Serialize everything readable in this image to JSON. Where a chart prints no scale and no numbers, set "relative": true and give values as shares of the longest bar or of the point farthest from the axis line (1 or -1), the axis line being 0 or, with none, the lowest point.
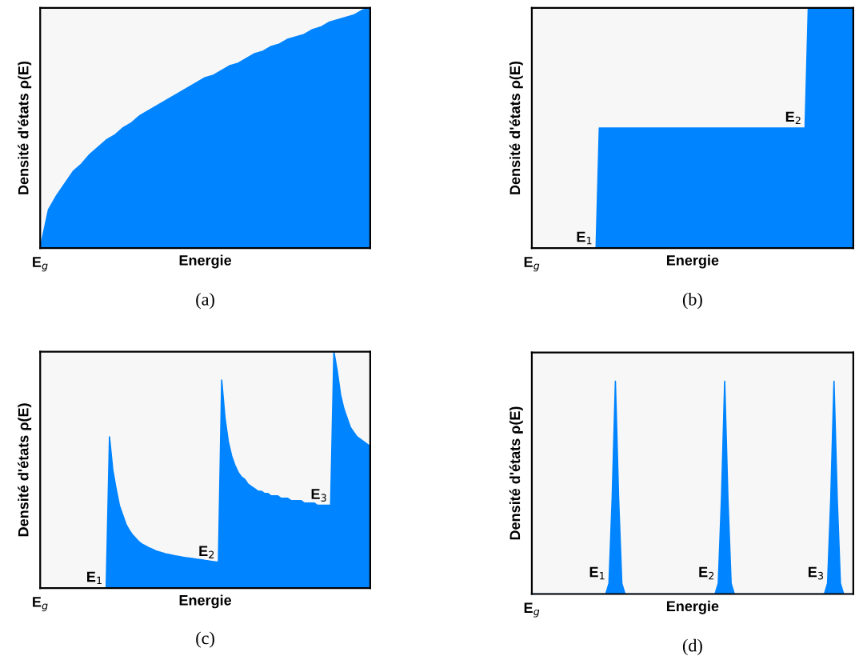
{
  "chart_data": [
    {
      "type": "area",
      "title": "(a)",
      "xlabel": "Energie",
      "ylabel": "Densité d'états ρ(E)",
      "relative": true,
      "tick_labels": false,
      "categories": [
        null,
        null,
        null,
        null,
        null,
        null,
        null,
        null,
        null,
        null,
        null,
        null,
        null,
        null,
        null,
        null,
        null,
        null,
        null,
        null,
        null,
        null,
        null,
        null,
        null,
        null,
        null,
        null,
        null,
        null,
        null,
        null,
        null,
        null,
        null,
        null,
        null,
        null,
        null,
        null,
        null
      ],
      "series": [
        {
          "color": "#0084ff",
          "values": [
            0,
            0.16,
            0.22,
            0.27,
            0.32,
            0.35,
            0.39,
            0.42,
            0.45,
            0.47,
            0.5,
            0.52,
            0.55,
            0.57,
            0.59,
            0.61,
            0.63,
            0.65,
            0.67,
            0.69,
            0.71,
            0.72,
            0.74,
            0.76,
            0.77,
            0.79,
            0.81,
            0.82,
            0.84,
            0.85,
            0.87,
            0.88,
            0.89,
            0.91,
            0.92,
            0.94,
            0.95,
            0.96,
            0.97,
            0.99,
            1
          ]
        }
      ],
      "annotations": [
        "E$_{g}$"
      ]
    },
    {
      "type": "area",
      "title": "(b)",
      "xlabel": "Energie",
      "ylabel": "Densité d'états ρ(E)",
      "relative": true,
      "tick_labels": false,
      "categories": [
        null,
        null,
        null,
        null,
        null,
        null,
        null,
        null,
        null,
        null,
        null,
        null,
        null,
        null,
        null,
        null,
        null,
        null,
        null,
        null,
        null,
        null,
        null,
        null,
        null,
        null,
        null,
        null,
        null,
        null,
        null,
        null,
        null,
        null,
        null,
        null,
        null,
        null,
        null,
        null,
        null,
        null,
        null,
        null,
        null,
        null,
        null,
        null,
        null,
        null,
        null,
        null,
        null,
        null,
        null,
        null,
        null,
        null,
        null,
        null,
        null,
        null,
        null,
        null,
        null,
        null,
        null,
        null,
        null,
        null,
        null,
        null,
        null,
        null,
        null,
        null,
        null,
        null,
        null,
        null,
        null,
        null,
        null,
        null,
        null,
        null,
        null,
        null,
        null,
        null,
        null,
        null,
        null,
        null,
        null,
        null,
        null,
        null,
        null,
        null,
        null
      ],
      "series": [
        {
          "color": "#0084ff",
          "values": [
            0,
            0,
            0,
            0,
            0,
            0,
            0,
            0,
            0,
            0,
            0,
            0,
            0,
            0,
            0,
            0,
            0,
            0,
            0,
            0,
            0,
            0.5,
            0.5,
            0.5,
            0.5,
            0.5,
            0.5,
            0.5,
            0.5,
            0.5,
            0.5,
            0.5,
            0.5,
            0.5,
            0.5,
            0.5,
            0.5,
            0.5,
            0.5,
            0.5,
            0.5,
            0.5,
            0.5,
            0.5,
            0.5,
            0.5,
            0.5,
            0.5,
            0.5,
            0.5,
            0.5,
            0.5,
            0.5,
            0.5,
            0.5,
            0.5,
            0.5,
            0.5,
            0.5,
            0.5,
            0.5,
            0.5,
            0.5,
            0.5,
            0.5,
            0.5,
            0.5,
            0.5,
            0.5,
            0.5,
            0.5,
            0.5,
            0.5,
            0.5,
            0.5,
            0.5,
            0.5,
            0.5,
            0.5,
            0.5,
            0.5,
            0.5,
            0.5,
            0.5,
            0.5,
            0.5,
            1,
            1,
            1,
            1,
            1,
            1,
            1,
            1,
            1,
            1,
            1,
            1,
            1,
            1,
            1
          ]
        }
      ],
      "annotations": [
        "E$_{g}$",
        "E$_{1}$",
        "E$_{2}$"
      ]
    },
    {
      "type": "area",
      "title": "(c)",
      "xlabel": "Energie",
      "ylabel": "Densité d'états ρ(E)",
      "relative": true,
      "tick_labels": false,
      "categories": [
        null,
        null,
        null,
        null,
        null,
        null,
        null,
        null,
        null,
        null,
        null,
        null,
        null,
        null,
        null,
        null,
        null,
        null,
        null,
        null,
        null,
        null,
        null,
        null,
        null,
        null,
        null,
        null,
        null,
        null,
        null,
        null,
        null,
        null,
        null,
        null,
        null,
        null,
        null,
        null,
        null,
        null,
        null,
        null,
        null,
        null,
        null,
        null,
        null,
        null,
        null,
        null,
        null,
        null,
        null,
        null,
        null,
        null,
        null,
        null,
        null,
        null,
        null,
        null,
        null,
        null,
        null,
        null,
        null,
        null,
        null,
        null,
        null,
        null,
        null,
        null,
        null,
        null,
        null,
        null,
        null,
        null,
        null,
        null,
        null,
        null,
        null,
        null,
        null,
        null,
        null,
        null,
        null,
        null,
        null,
        null,
        null,
        null,
        null,
        null,
        null
      ],
      "series": [
        {
          "color": "#0084ff",
          "values": [
            0,
            0,
            0,
            0,
            0,
            0,
            0,
            0,
            0,
            0,
            0,
            0,
            0,
            0,
            0,
            0,
            0,
            0,
            0,
            0,
            0,
            0.64,
            0.5,
            0.42,
            0.35,
            0.31,
            0.27,
            0.245,
            0.225,
            0.21,
            0.195,
            0.185,
            0.178,
            0.17,
            0.164,
            0.158,
            0.153,
            0.149,
            0.145,
            0.142,
            0.139,
            0.136,
            0.134,
            0.131,
            0.129,
            0.127,
            0.125,
            0.123,
            0.121,
            0.119,
            0.117,
            0.115,
            0.113,
            0.111,
            0.109,
            0.88,
            0.72,
            0.62,
            0.56,
            0.52,
            0.49,
            0.47,
            0.46,
            0.44,
            0.43,
            0.42,
            0.41,
            0.41,
            0.4,
            0.4,
            0.39,
            0.39,
            0.39,
            0.38,
            0.38,
            0.38,
            0.37,
            0.37,
            0.37,
            0.37,
            0.36,
            0.36,
            0.36,
            0.36,
            0.35,
            0.35,
            0.35,
            0.35,
            0.35,
            1,
            0.92,
            0.82,
            0.76,
            0.72,
            0.68,
            0.66,
            0.64,
            0.63,
            0.62,
            0.61,
            0.6
          ]
        }
      ],
      "annotations": [
        "E$_{g}$",
        "E$_{1}$",
        "E$_{2}$",
        "E$_{3}$"
      ]
    },
    {
      "type": "area",
      "title": "(d)",
      "xlabel": "Energie",
      "ylabel": "Densité d'états ρ(E)",
      "relative": true,
      "tick_labels": false,
      "categories": [
        null,
        null,
        null,
        null,
        null,
        null,
        null,
        null,
        null,
        null,
        null,
        null,
        null,
        null,
        null,
        null,
        null,
        null,
        null,
        null,
        null,
        null,
        null,
        null,
        null,
        null,
        null,
        null,
        null,
        null,
        null,
        null,
        null,
        null,
        null,
        null,
        null,
        null,
        null,
        null,
        null,
        null,
        null,
        null,
        null,
        null,
        null,
        null,
        null,
        null,
        null,
        null,
        null,
        null,
        null,
        null,
        null,
        null,
        null,
        null,
        null,
        null,
        null,
        null,
        null,
        null,
        null,
        null,
        null,
        null,
        null,
        null,
        null,
        null,
        null,
        null,
        null,
        null,
        null,
        null,
        null,
        null,
        null,
        null,
        null,
        null,
        null,
        null,
        null,
        null,
        null,
        null,
        null,
        null,
        null,
        null,
        null,
        null,
        null,
        null,
        null
      ],
      "series": [
        {
          "color": "#0084ff",
          "values": [
            0,
            0,
            0,
            0,
            0,
            0,
            0,
            0,
            0,
            0,
            0,
            0,
            0,
            0,
            0,
            0,
            0,
            0,
            0,
            0,
            0,
            0,
            0,
            0,
            0.05,
            0.45,
            1,
            0.45,
            0.05,
            0,
            0,
            0,
            0,
            0,
            0,
            0,
            0,
            0,
            0,
            0,
            0,
            0,
            0,
            0,
            0,
            0,
            0,
            0,
            0,
            0,
            0,
            0,
            0,
            0,
            0,
            0,
            0,
            0,
            0.05,
            0.45,
            1,
            0.45,
            0.05,
            0,
            0,
            0,
            0,
            0,
            0,
            0,
            0,
            0,
            0,
            0,
            0,
            0,
            0,
            0,
            0,
            0,
            0,
            0,
            0,
            0,
            0,
            0,
            0,
            0,
            0,
            0,
            0,
            0,
            0.05,
            0.45,
            1,
            0.45,
            0.05,
            0,
            0,
            0,
            0
          ]
        }
      ],
      "annotations": [
        "E$_{g}$",
        "E$_{1}$",
        "E$_{2}$",
        "E$_{3}$"
      ]
    }
  ]
}
